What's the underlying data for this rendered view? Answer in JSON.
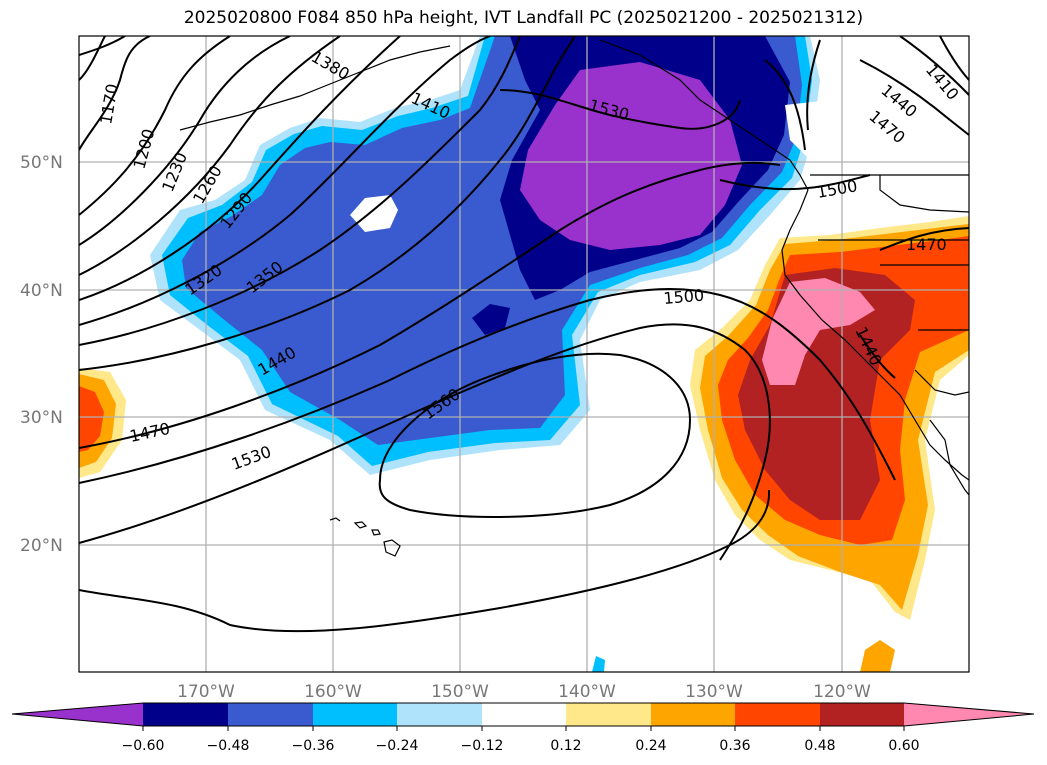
{
  "title": "2025020800 F084 850 hPa height, IVT Landfall PC (2025021200 - 2025021312)",
  "lat_labels": [
    "50°N",
    "40°N",
    "30°N",
    "20°N"
  ],
  "lon_labels": [
    "170°W",
    "160°W",
    "150°W",
    "140°W",
    "130°W",
    "120°W"
  ],
  "contour_labels": [
    "1170",
    "1200",
    "1230",
    "1260",
    "1290",
    "1320",
    "1350",
    "1380",
    "1410",
    "1440",
    "1470",
    "1530",
    "1560",
    "1500",
    "1530",
    "1500",
    "1410",
    "1440",
    "1470",
    "1470",
    "1440"
  ],
  "colorbar": {
    "ticks": [
      "−0.60",
      "−0.48",
      "−0.36",
      "−0.24",
      "−0.12",
      "0.12",
      "0.24",
      "0.36",
      "0.48",
      "0.60"
    ],
    "colors": [
      "#9932cc",
      "#00008b",
      "#3a5bcf",
      "#00bfff",
      "#aee3fb",
      "#ffffff",
      "#ffe88a",
      "#ffa500",
      "#ff4500",
      "#b22222",
      "#ff88b0"
    ]
  },
  "colors": {
    "purple": "#9932cc",
    "navy": "#00008b",
    "royal": "#3a5bcf",
    "sky": "#00bfff",
    "pale": "#aee3fb",
    "yellow": "#ffe88a",
    "orange": "#ffa500",
    "redorange": "#ff4500",
    "firebrick": "#b22222",
    "pink": "#ff88b0"
  }
}
